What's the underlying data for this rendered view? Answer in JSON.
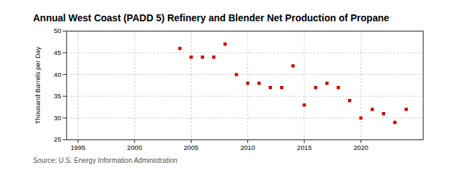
{
  "chart_data": {
    "type": "scatter",
    "title": "Annual West Coast (PADD 5) Refinery and Blender Net Production of Propane",
    "ylabel": "Thousand Barrels per Day",
    "source": "Source: U.S. Energy Information Administration",
    "x": [
      2004,
      2005,
      2006,
      2007,
      2008,
      2009,
      2010,
      2011,
      2012,
      2013,
      2014,
      2015,
      2016,
      2017,
      2018,
      2019,
      2020,
      2021,
      2022,
      2023,
      2024
    ],
    "values": [
      46.0,
      44.0,
      44.0,
      44.0,
      47.0,
      40.0,
      38.0,
      38.0,
      37.0,
      37.0,
      42.0,
      33.0,
      37.0,
      38.0,
      37.0,
      34.0,
      30.0,
      32.0,
      31.0,
      29.0,
      32.0
    ],
    "color": "#cc0000",
    "marker": "square",
    "xlim": [
      1994,
      2025.5
    ],
    "ylim": [
      25,
      50
    ],
    "xticks": [
      1995,
      2000,
      2005,
      2010,
      2015,
      2020
    ],
    "yticks": [
      25,
      30,
      35,
      40,
      45,
      50
    ],
    "grid": true
  }
}
